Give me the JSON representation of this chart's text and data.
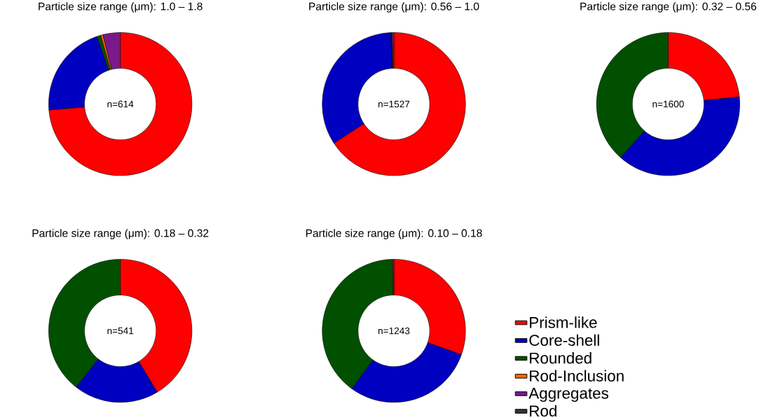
{
  "chart_data": [
    {
      "type": "donut",
      "title": "Particle size range (μm): 1.0 – 1.8",
      "categories": [
        null,
        null,
        null,
        null,
        null,
        null
      ],
      "values": [
        73.7,
        21,
        0.9,
        0.5,
        3.9,
        0
      ],
      "colors": [
        "#ff0000",
        "#0000c0",
        "#005000",
        "#ff6600",
        "#7a1a8a",
        "#333333"
      ],
      "annotations": [
        "n=614"
      ]
    },
    {
      "type": "donut",
      "title": "Particle size range (μm): 0.56 – 1.0",
      "categories": [
        null,
        null,
        null,
        null,
        null,
        null
      ],
      "values": [
        65.8,
        33.5,
        0,
        0,
        0.3,
        0.4
      ],
      "colors": [
        "#ff0000",
        "#0000c0",
        "#005000",
        "#ff6600",
        "#111111",
        "#7a1a8a"
      ],
      "annotations": [
        "n=1527"
      ]
    },
    {
      "type": "donut",
      "title": "Particle size range (μm): 0.32 – 0.56",
      "categories": [
        null,
        null,
        null,
        null,
        null,
        null
      ],
      "values": [
        23.4,
        38.2,
        38.4,
        0,
        0,
        0
      ],
      "colors": [
        "#ff0000",
        "#0000c0",
        "#005000",
        "#ff6600",
        "#7a1a8a",
        "#333333"
      ],
      "annotations": [
        "n=1600"
      ]
    },
    {
      "type": "donut",
      "title": "Particle size range (μm): 0.18 – 0.32",
      "categories": [
        null,
        null,
        null,
        null,
        null,
        null
      ],
      "values": [
        41.4,
        19.2,
        39.4,
        0,
        0,
        0
      ],
      "colors": [
        "#ff0000",
        "#0000c0",
        "#005000",
        "#ff6600",
        "#7a1a8a",
        "#333333"
      ],
      "annotations": [
        "n=541"
      ]
    },
    {
      "type": "donut",
      "title": "Particle size range (μm): 0.10 – 0.18",
      "categories": [
        "Prism-like",
        "Core-shell",
        "Rounded",
        "Rod-Inclusion",
        "Aggregates",
        "Rod"
      ],
      "values": [
        30.4,
        29.6,
        39.7,
        0,
        0.3,
        0
      ],
      "colors": [
        "#ff0000",
        "#0000c0",
        "#005000",
        "#ff6600",
        "#7a1a8a",
        "#333333"
      ],
      "annotations": [
        "n=1243"
      ],
      "legend": "right"
    }
  ]
}
